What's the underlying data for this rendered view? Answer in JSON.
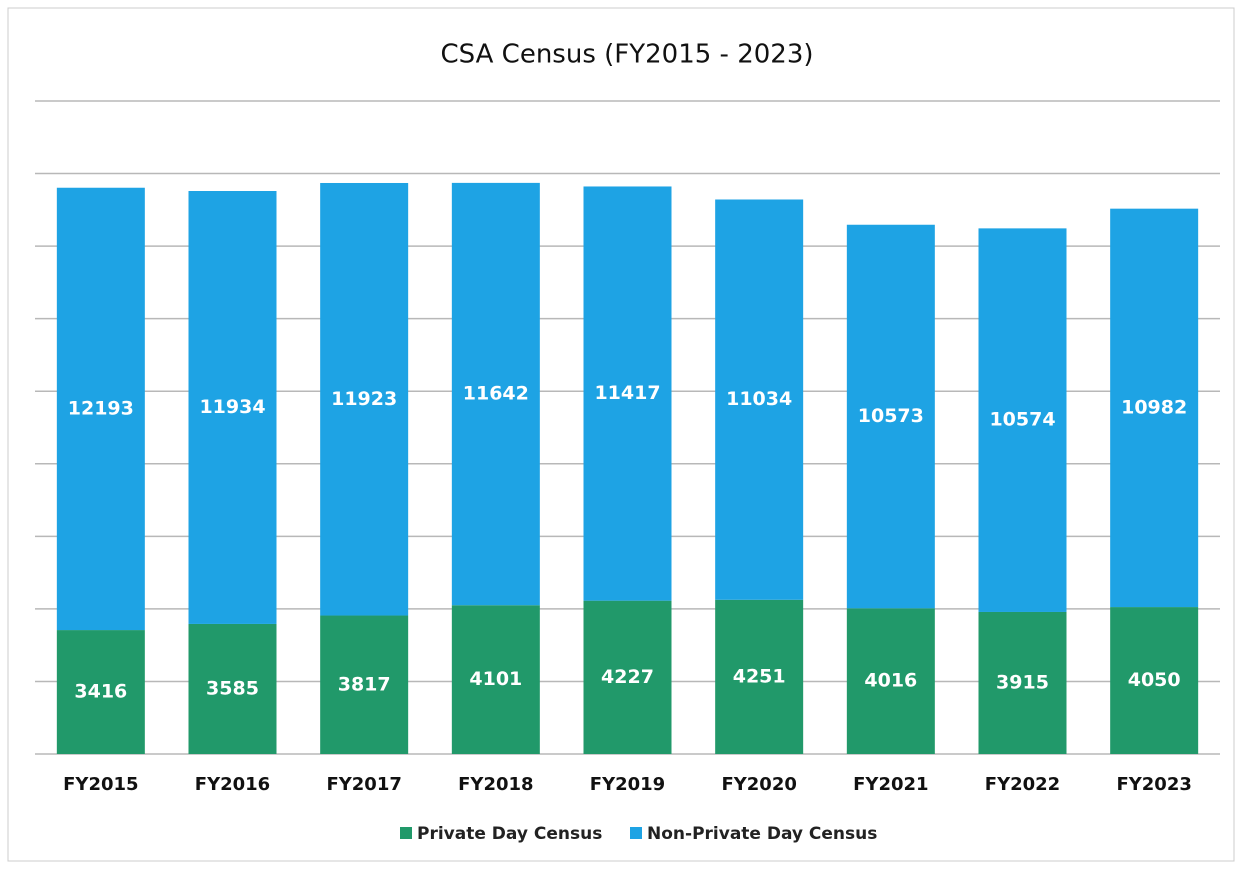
{
  "chart_data": {
    "type": "stacked-bar",
    "title": "CSA Census (FY2015 - 2023)",
    "categories": [
      "FY2015",
      "FY2016",
      "FY2017",
      "FY2018",
      "FY2019",
      "FY2020",
      "FY2021",
      "FY2022",
      "FY2023"
    ],
    "series": [
      {
        "name": "Private Day Census",
        "color": "#21996a",
        "values": [
          3416,
          3585,
          3817,
          4101,
          4227,
          4251,
          4016,
          3915,
          4050
        ]
      },
      {
        "name": "Non-Private Day Census",
        "color": "#1ea3e4",
        "values": [
          12193,
          11934,
          11923,
          11642,
          11417,
          11034,
          10573,
          10574,
          10982
        ]
      }
    ],
    "ylim": [
      0,
      18000
    ],
    "yticks": [
      0,
      2000,
      4000,
      6000,
      8000,
      10000,
      12000,
      14000,
      16000,
      18000
    ],
    "grid": true,
    "legend": "bottom"
  }
}
